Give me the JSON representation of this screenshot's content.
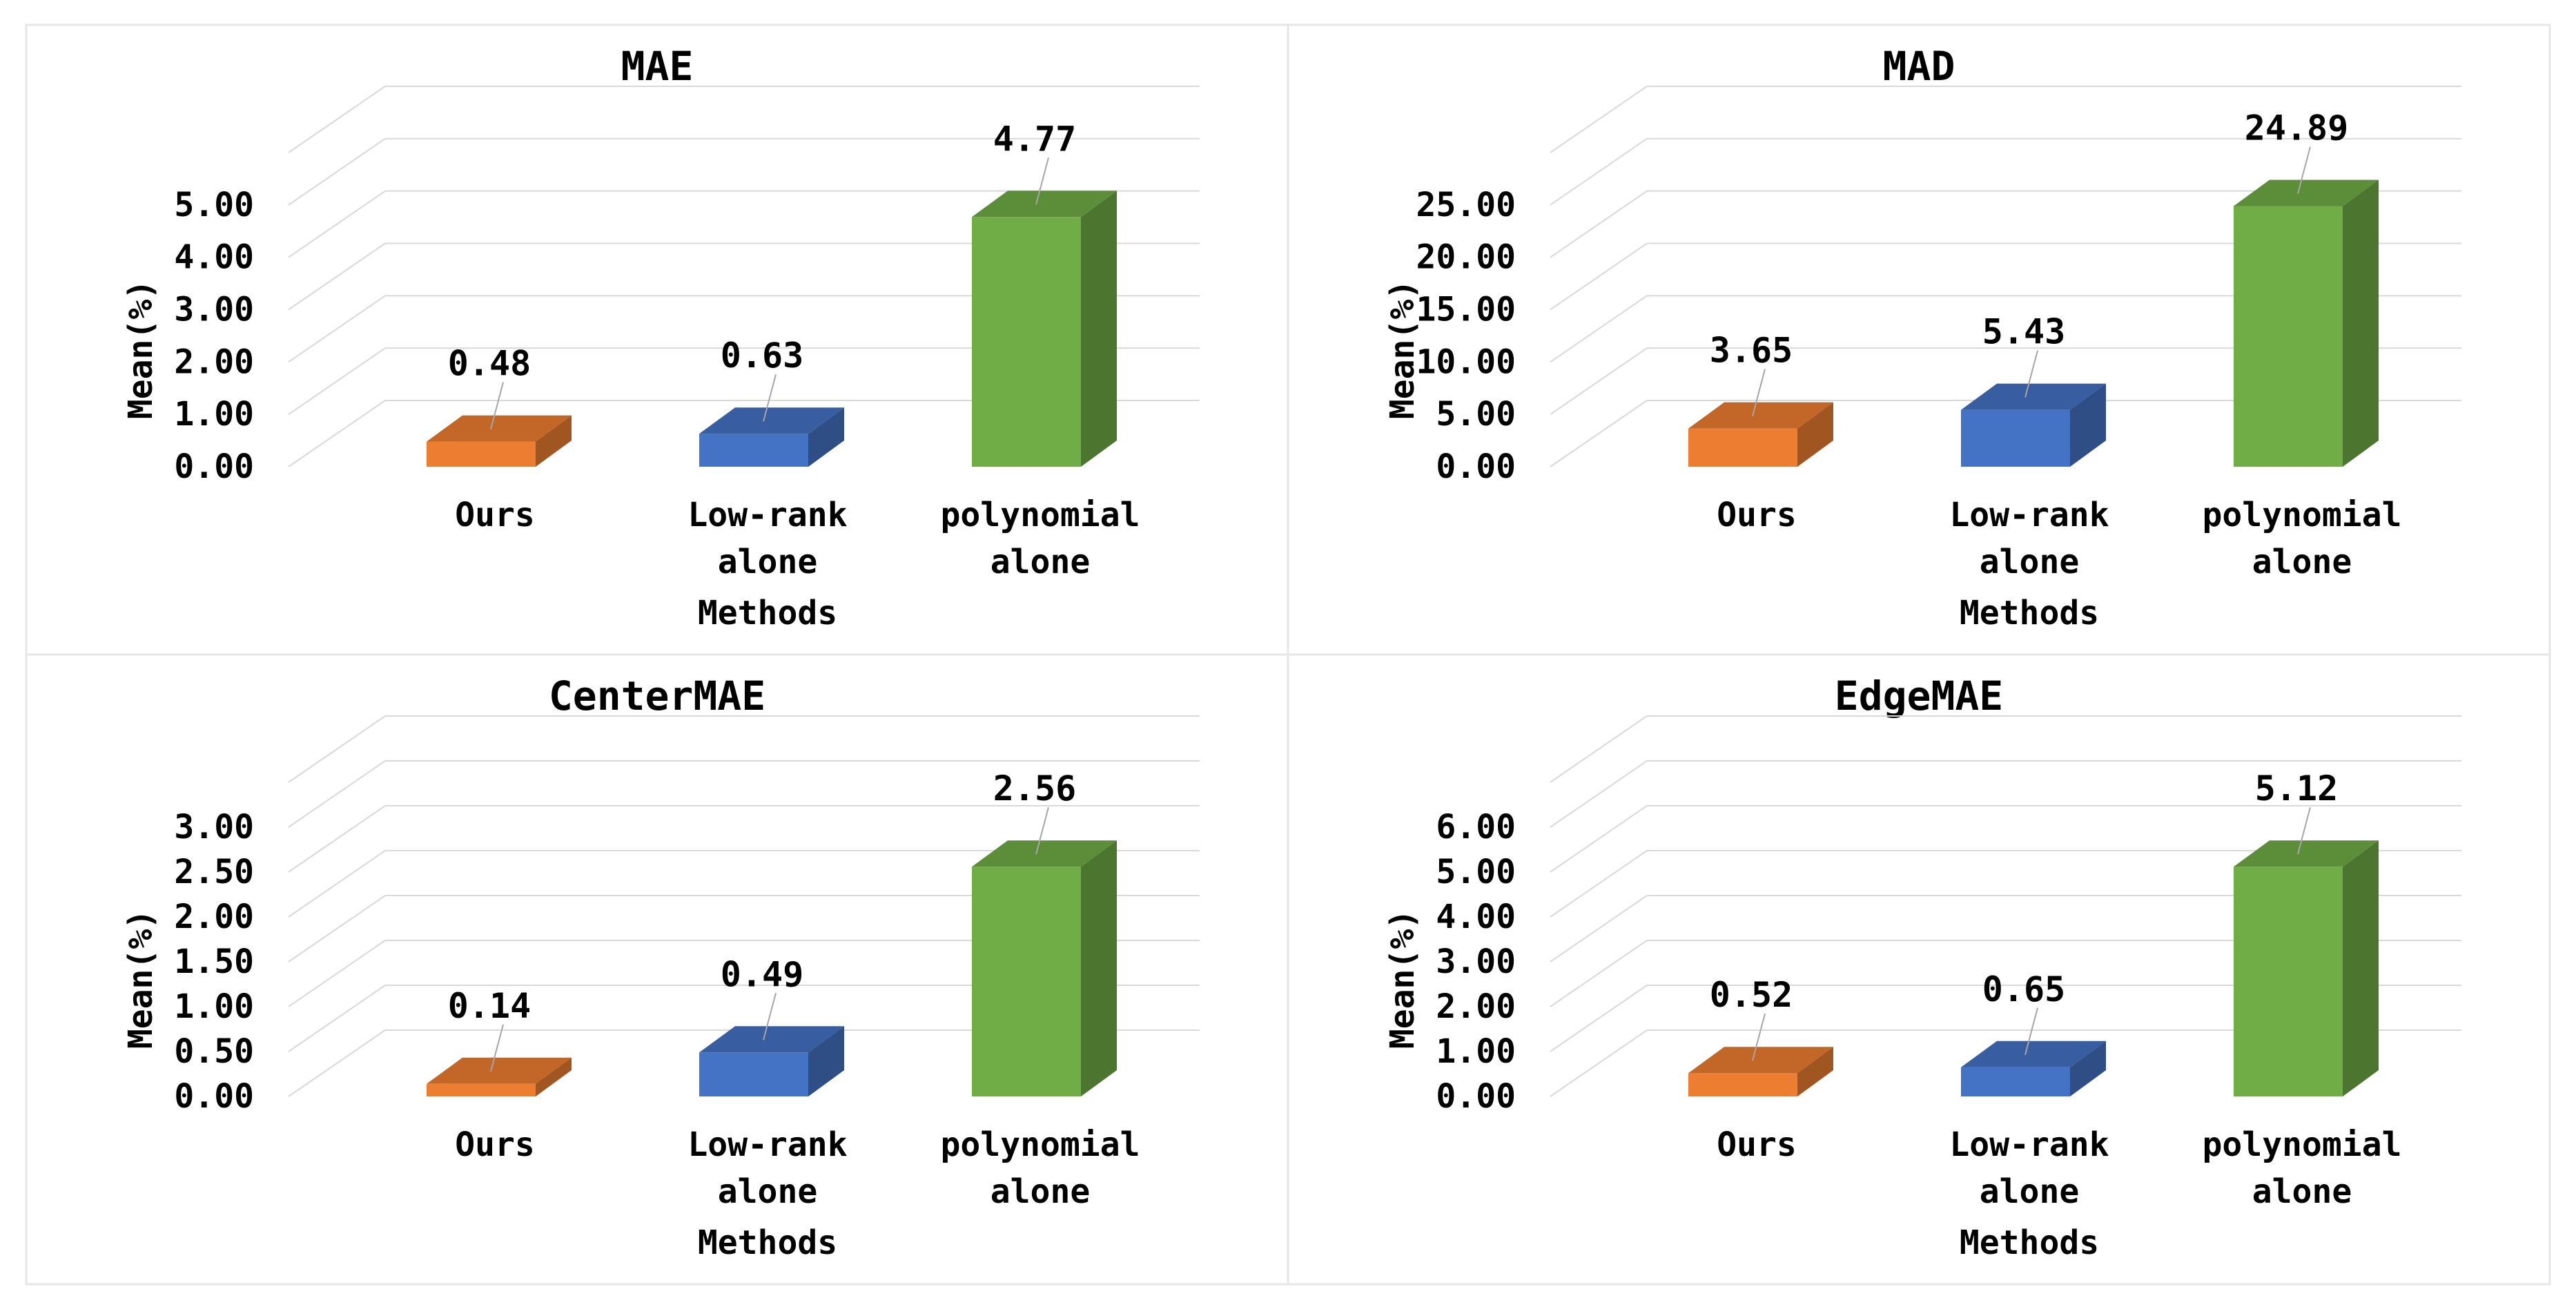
{
  "chart_data": [
    {
      "type": "bar",
      "title": "MAE",
      "xlabel": "Methods",
      "ylabel": "Mean(%)",
      "categories": [
        [
          "Ours"
        ],
        [
          "Low-rank",
          "alone"
        ],
        [
          "polynomial",
          "alone"
        ]
      ],
      "values": [
        0.48,
        0.63,
        4.77
      ],
      "value_labels": [
        "0.48",
        "0.63",
        "4.77"
      ],
      "yticks": [
        "0.00",
        "1.00",
        "2.00",
        "3.00",
        "4.00",
        "5.00"
      ],
      "ylim": [
        0,
        6
      ],
      "grid": true,
      "legend": "none",
      "colors": [
        "#ED7D31",
        "#4472C4",
        "#70AD47"
      ]
    },
    {
      "type": "bar",
      "title": "MAD",
      "xlabel": "Methods",
      "ylabel": "Mean(%)",
      "categories": [
        [
          "Ours"
        ],
        [
          "Low-rank",
          "alone"
        ],
        [
          "polynomial",
          "alone"
        ]
      ],
      "values": [
        3.65,
        5.43,
        24.89
      ],
      "value_labels": [
        "3.65",
        "5.43",
        "24.89"
      ],
      "yticks": [
        "0.00",
        "5.00",
        "10.00",
        "15.00",
        "20.00",
        "25.00"
      ],
      "ylim": [
        0,
        30
      ],
      "grid": true,
      "legend": "none",
      "colors": [
        "#ED7D31",
        "#4472C4",
        "#70AD47"
      ]
    },
    {
      "type": "bar",
      "title": "CenterMAE",
      "xlabel": "Methods",
      "ylabel": "Mean(%)",
      "categories": [
        [
          "Ours"
        ],
        [
          "Low-rank",
          "alone"
        ],
        [
          "polynomial",
          "alone"
        ]
      ],
      "values": [
        0.14,
        0.49,
        2.56
      ],
      "value_labels": [
        "0.14",
        "0.49",
        "2.56"
      ],
      "yticks": [
        "0.00",
        "0.50",
        "1.00",
        "1.50",
        "2.00",
        "2.50",
        "3.00"
      ],
      "ylim": [
        0,
        3.5
      ],
      "grid": true,
      "legend": "none",
      "colors": [
        "#ED7D31",
        "#4472C4",
        "#70AD47"
      ]
    },
    {
      "type": "bar",
      "title": "EdgeMAE",
      "xlabel": "Methods",
      "ylabel": "Mean(%)",
      "categories": [
        [
          "Ours"
        ],
        [
          "Low-rank",
          "alone"
        ],
        [
          "polynomial",
          "alone"
        ]
      ],
      "values": [
        0.52,
        0.65,
        5.12
      ],
      "value_labels": [
        "0.52",
        "0.65",
        "5.12"
      ],
      "yticks": [
        "0.00",
        "1.00",
        "2.00",
        "3.00",
        "4.00",
        "5.00",
        "6.00"
      ],
      "ylim": [
        0,
        7
      ],
      "grid": true,
      "legend": "none",
      "colors": [
        "#ED7D31",
        "#4472C4",
        "#70AD47"
      ]
    }
  ]
}
